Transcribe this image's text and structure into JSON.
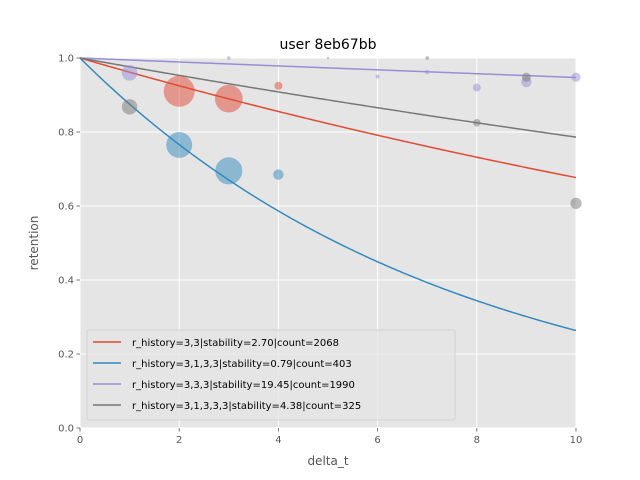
{
  "chart_data": {
    "type": "line",
    "title": "user 8eb67bb",
    "xlabel": "delta_t",
    "ylabel": "retention",
    "xlim": [
      0,
      10
    ],
    "ylim": [
      0.0,
      1.0
    ],
    "xticks": [
      "0",
      "2",
      "4",
      "6",
      "8",
      "10"
    ],
    "yticks": [
      "0.0",
      "0.2",
      "0.4",
      "0.6",
      "0.8",
      "1.0"
    ],
    "grid": true,
    "legend_position": "lower-left",
    "series": [
      {
        "name": "r_history=3,3|stability=2.70|count=2068",
        "color": "#E24A33",
        "stability": 2.7,
        "points": [
          {
            "x": 2,
            "y": 0.91,
            "count": 1500
          },
          {
            "x": 3,
            "y": 0.89,
            "count": 1200
          },
          {
            "x": 4,
            "y": 0.925,
            "count": 100
          }
        ]
      },
      {
        "name": "r_history=3,1,3,3|stability=0.79|count=403",
        "color": "#348ABD",
        "stability": 0.79,
        "points": [
          {
            "x": 2,
            "y": 0.765,
            "count": 1050
          },
          {
            "x": 3,
            "y": 0.695,
            "count": 1150
          },
          {
            "x": 4,
            "y": 0.685,
            "count": 170
          }
        ]
      },
      {
        "name": "r_history=3,3,3|stability=19.45|count=1990",
        "color": "#988ED5",
        "stability": 19.45,
        "points": [
          {
            "x": 1,
            "y": 0.96,
            "count": 380
          },
          {
            "x": 3,
            "y": 1.0,
            "count": 20
          },
          {
            "x": 5,
            "y": 1.0,
            "count": 10
          },
          {
            "x": 6,
            "y": 0.95,
            "count": 25
          },
          {
            "x": 7,
            "y": 0.962,
            "count": 30
          },
          {
            "x": 8,
            "y": 0.92,
            "count": 100
          },
          {
            "x": 9,
            "y": 0.935,
            "count": 170
          },
          {
            "x": 10,
            "y": 0.948,
            "count": 130
          }
        ]
      },
      {
        "name": "r_history=3,1,3,3,3|stability=4.38|count=325",
        "color": "#777777",
        "stability": 4.38,
        "points": [
          {
            "x": 1,
            "y": 0.868,
            "count": 370
          },
          {
            "x": 7,
            "y": 1.0,
            "count": 20
          },
          {
            "x": 8,
            "y": 0.825,
            "count": 90
          },
          {
            "x": 9,
            "y": 0.948,
            "count": 130
          },
          {
            "x": 10,
            "y": 0.607,
            "count": 200
          }
        ]
      }
    ]
  }
}
